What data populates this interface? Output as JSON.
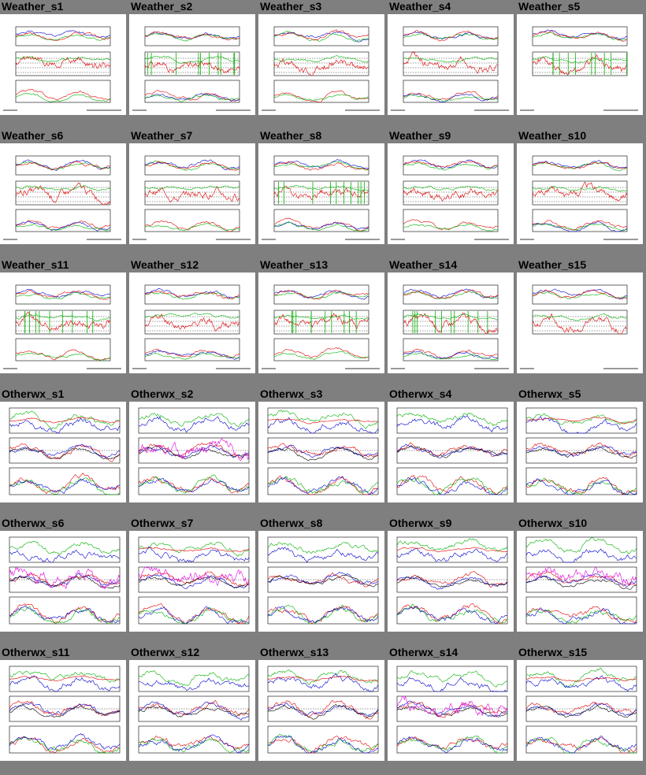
{
  "panels": [
    {
      "title": "Weather_s1",
      "kind": "weather",
      "seed": 1
    },
    {
      "title": "Weather_s2",
      "kind": "weather",
      "seed": 2
    },
    {
      "title": "Weather_s3",
      "kind": "weather",
      "seed": 3
    },
    {
      "title": "Weather_s4",
      "kind": "weather",
      "seed": 4
    },
    {
      "title": "Weather_s5",
      "kind": "weather2",
      "seed": 5
    },
    {
      "title": "Weather_s6",
      "kind": "weather",
      "seed": 6
    },
    {
      "title": "Weather_s7",
      "kind": "weather",
      "seed": 7
    },
    {
      "title": "Weather_s8",
      "kind": "weather",
      "seed": 8
    },
    {
      "title": "Weather_s9",
      "kind": "weather",
      "seed": 9
    },
    {
      "title": "Weather_s10",
      "kind": "weather",
      "seed": 10
    },
    {
      "title": "Weather_s11",
      "kind": "weather",
      "seed": 11
    },
    {
      "title": "Weather_s12",
      "kind": "weather",
      "seed": 12
    },
    {
      "title": "Weather_s13",
      "kind": "weather",
      "seed": 13
    },
    {
      "title": "Weather_s14",
      "kind": "weather",
      "seed": 14
    },
    {
      "title": "Weather_s15",
      "kind": "weather2",
      "seed": 15
    },
    {
      "title": "Otherwx_s1",
      "kind": "otherwx",
      "seed": 21
    },
    {
      "title": "Otherwx_s2",
      "kind": "otherwx",
      "seed": 22
    },
    {
      "title": "Otherwx_s3",
      "kind": "otherwx",
      "seed": 23
    },
    {
      "title": "Otherwx_s4",
      "kind": "otherwx",
      "seed": 24
    },
    {
      "title": "Otherwx_s5",
      "kind": "otherwx",
      "seed": 25
    },
    {
      "title": "Otherwx_s6",
      "kind": "otherwx",
      "seed": 26
    },
    {
      "title": "Otherwx_s7",
      "kind": "otherwx",
      "seed": 27
    },
    {
      "title": "Otherwx_s8",
      "kind": "otherwx",
      "seed": 28
    },
    {
      "title": "Otherwx_s9",
      "kind": "otherwx",
      "seed": 29
    },
    {
      "title": "Otherwx_s10",
      "kind": "otherwx",
      "seed": 30
    },
    {
      "title": "Otherwx_s11",
      "kind": "otherwx",
      "seed": 31
    },
    {
      "title": "Otherwx_s12",
      "kind": "otherwx",
      "seed": 32
    },
    {
      "title": "Otherwx_s13",
      "kind": "otherwx",
      "seed": 33
    },
    {
      "title": "Otherwx_s14",
      "kind": "otherwx",
      "seed": 34
    },
    {
      "title": "Otherwx_s15",
      "kind": "otherwx",
      "seed": 35
    }
  ],
  "colors": {
    "background": "#7f7f7f",
    "red": "#e00000",
    "green": "#00b000",
    "blue": "#0000d0",
    "cyan": "#00b8e0",
    "magenta": "#e000e0",
    "black": "#000000"
  }
}
